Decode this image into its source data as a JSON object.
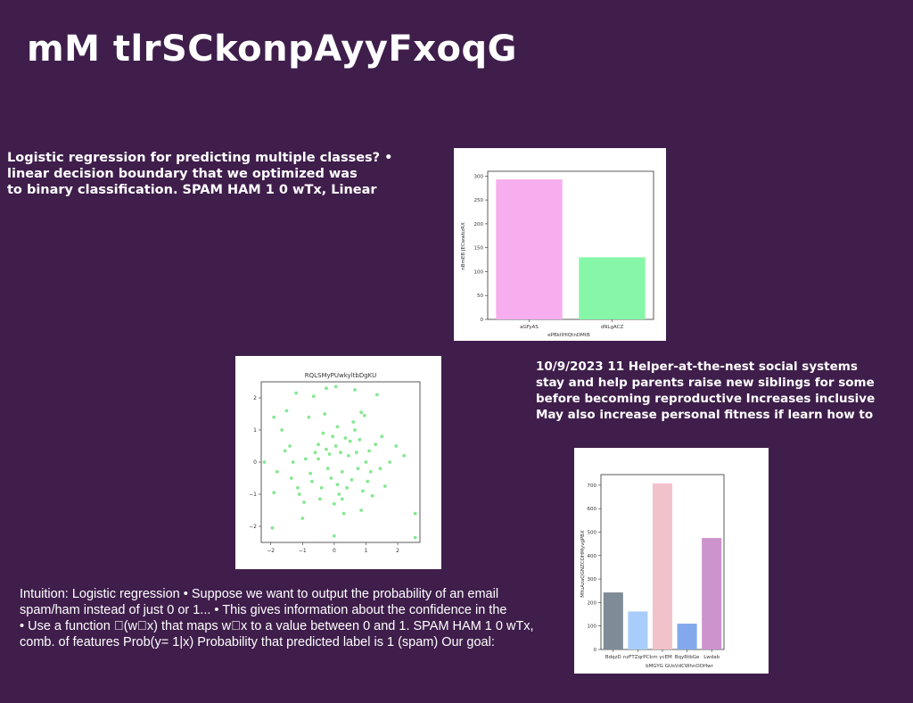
{
  "slide": {
    "title": "mM tlrSCkonpAyyFxoqG",
    "para_a": [
      "Logistic regression for predicting multiple classes? •",
      "linear decision boundary that we optimized was",
      "to binary classification. SPAM HAM 1 0 wTx, Linear"
    ],
    "para_b": [
      "10/9/2023 11 Helper-at-the-nest social systems",
      "stay and help parents raise new siblings for some",
      "before becoming reproductive Increases inclusive",
      "May also increase personal fitness if learn how to"
    ],
    "para_c": [
      "Intuition: Logistic regression • Suppose we want to output the probability of an email",
      "spam/ham instead of just 0 or 1... • This gives information about the confidence in the",
      "• Use a function \u0000(w\u0000x) that maps w\u0000x to a value between 0 and 1. SPAM HAM 1 0 wTx,",
      "comb. of features Prob(y= 1|x) Probability that predicted label is 1 (spam) Our goal:"
    ]
  },
  "charts": {
    "bar1": {
      "xlabel": "ePBkIIHlQtnDMtB",
      "ylabel": "nBmEB JECwwbzRX"
    },
    "scatter": {
      "title": "RQLSMyPUwkyltbDgKU"
    },
    "bar2": {
      "xlabel": "bMGYG GUsVdCWhnOOHwr",
      "ylabel": "MYuAzaQGNZCOHMyvgPBX"
    }
  },
  "chart_data": [
    {
      "type": "bar",
      "categories": [
        "aGFyAS",
        "dNLgACZ"
      ],
      "values": [
        293,
        130
      ],
      "colors": [
        "#f7aeee",
        "#86f7a8"
      ],
      "ylim": [
        0,
        310
      ],
      "yticks": [
        0,
        50,
        100,
        150,
        200,
        250,
        300
      ]
    },
    {
      "type": "scatter",
      "color": "#86e892",
      "xlim": [
        -2.3,
        2.7
      ],
      "ylim": [
        -2.5,
        2.5
      ],
      "xticks": [
        -2,
        -1,
        0,
        1,
        2
      ],
      "yticks": [
        -2,
        -1,
        0,
        1,
        2
      ],
      "points": [
        [
          -2.2,
          0.0
        ],
        [
          -1.95,
          -2.05
        ],
        [
          -1.9,
          -0.95
        ],
        [
          -1.9,
          1.4
        ],
        [
          -1.8,
          -0.3
        ],
        [
          -1.65,
          1.0
        ],
        [
          -1.5,
          1.6
        ],
        [
          -1.4,
          0.5
        ],
        [
          -1.35,
          -0.5
        ],
        [
          -1.3,
          0.0
        ],
        [
          -1.2,
          2.15
        ],
        [
          -1.15,
          -0.8
        ],
        [
          -1.1,
          -1.0
        ],
        [
          -1.0,
          -1.75
        ],
        [
          -0.9,
          0.1
        ],
        [
          -0.8,
          1.4
        ],
        [
          -0.75,
          -0.35
        ],
        [
          -0.7,
          -0.6
        ],
        [
          -0.65,
          2.05
        ],
        [
          -0.6,
          0.3
        ],
        [
          -0.5,
          0.55
        ],
        [
          -0.5,
          0.1
        ],
        [
          -0.45,
          -1.15
        ],
        [
          -0.4,
          -0.8
        ],
        [
          -0.35,
          0.9
        ],
        [
          -0.3,
          1.5
        ],
        [
          -0.25,
          0.4
        ],
        [
          -0.2,
          -0.2
        ],
        [
          -0.15,
          0.25
        ],
        [
          -0.1,
          -0.5
        ],
        [
          -0.05,
          0.8
        ],
        [
          0.0,
          -1.3
        ],
        [
          0.05,
          0.5
        ],
        [
          0.1,
          1.1
        ],
        [
          0.1,
          -0.7
        ],
        [
          0.15,
          -1.0
        ],
        [
          0.2,
          0.3
        ],
        [
          0.25,
          -0.3
        ],
        [
          0.3,
          -1.6
        ],
        [
          0.35,
          0.75
        ],
        [
          0.4,
          -0.8
        ],
        [
          0.45,
          0.2
        ],
        [
          0.5,
          0.65
        ],
        [
          0.55,
          -0.55
        ],
        [
          0.6,
          1.25
        ],
        [
          0.65,
          1.0
        ],
        [
          0.7,
          0.3
        ],
        [
          0.75,
          -0.2
        ],
        [
          0.8,
          0.7
        ],
        [
          0.85,
          -1.5
        ],
        [
          0.9,
          -0.9
        ],
        [
          0.95,
          1.45
        ],
        [
          1.0,
          0.0
        ],
        [
          1.05,
          -0.6
        ],
        [
          1.1,
          0.35
        ],
        [
          1.15,
          -0.3
        ],
        [
          1.2,
          -1.05
        ],
        [
          1.3,
          0.55
        ],
        [
          1.35,
          2.1
        ],
        [
          1.45,
          -0.2
        ],
        [
          1.5,
          0.8
        ],
        [
          1.6,
          -0.75
        ],
        [
          1.75,
          0.0
        ],
        [
          1.95,
          0.5
        ],
        [
          2.2,
          0.2
        ],
        [
          2.55,
          -1.6
        ],
        [
          2.55,
          -2.35
        ],
        [
          0.05,
          2.35
        ],
        [
          -0.25,
          2.3
        ],
        [
          0.65,
          2.25
        ],
        [
          0.0,
          -2.3
        ],
        [
          0.25,
          -1.15
        ],
        [
          -0.95,
          -1.25
        ],
        [
          -1.55,
          0.35
        ],
        [
          0.85,
          1.55
        ]
      ]
    },
    {
      "type": "bar",
      "categories": [
        "BdqzD",
        "nzFTZqrPCb",
        "m ycEM",
        "BqyRtbGe",
        "Lwdab"
      ],
      "values": [
        243,
        162,
        708,
        110,
        475
      ],
      "colors": [
        "#7f8b96",
        "#a9cdfb",
        "#f2c2cb",
        "#83a9ec",
        "#cc94cc"
      ],
      "ylim": [
        0,
        745
      ],
      "yticks": [
        0,
        100,
        200,
        300,
        400,
        500,
        600,
        700
      ]
    }
  ]
}
